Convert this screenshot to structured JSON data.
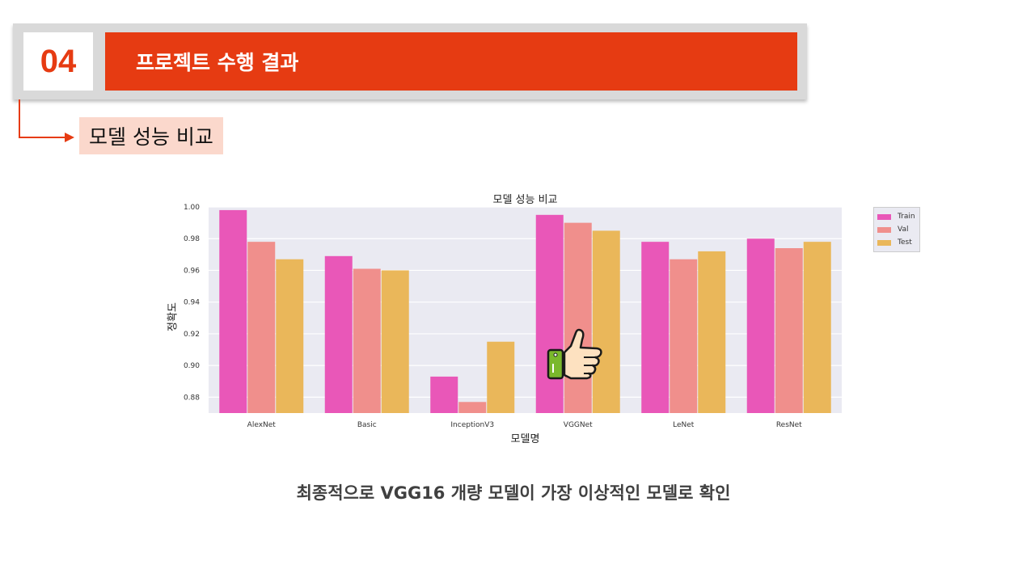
{
  "header": {
    "section_number": "04",
    "title": "프로젝트 수행 결과",
    "subtitle": "모델 성능 비교"
  },
  "colors": {
    "accent": "#e63b12",
    "subtitle_bg": "#fbd8cc",
    "plot_bg": "#eaeaf2"
  },
  "chart_data": {
    "type": "bar",
    "title": "모델 성능 비교",
    "xlabel": "모델명",
    "ylabel": "정확도",
    "categories": [
      "AlexNet",
      "Basic",
      "InceptionV3",
      "VGGNet",
      "LeNet",
      "ResNet"
    ],
    "series": [
      {
        "name": "Train",
        "color": "#e957b8",
        "values": [
          0.998,
          0.969,
          0.893,
          0.995,
          0.978,
          0.98
        ]
      },
      {
        "name": "Val",
        "color": "#f08f8c",
        "values": [
          0.978,
          0.961,
          0.877,
          0.99,
          0.967,
          0.974
        ]
      },
      {
        "name": "Test",
        "color": "#eab75a",
        "values": [
          0.967,
          0.96,
          0.915,
          0.985,
          0.972,
          0.978
        ]
      }
    ],
    "ylim": [
      0.87,
      1.0
    ],
    "yticks": [
      "0.88",
      "0.90",
      "0.92",
      "0.94",
      "0.96",
      "0.98",
      "1.00"
    ],
    "grid": true,
    "legend_position": "outside-top-right",
    "annotation_icon": "thumbs-up-icon"
  },
  "conclusion": "최종적으로 VGG16 개량 모델이 가장 이상적인 모델로 확인"
}
